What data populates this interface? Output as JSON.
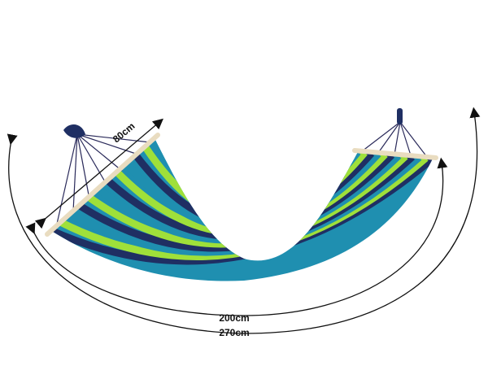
{
  "dimensions": {
    "width_label": "80cm",
    "bed_length_label": "200cm",
    "total_length_label": "270cm"
  },
  "colors": {
    "navy": "#1f2f63",
    "teal": "#1f8fb0",
    "lime": "#9fe03a",
    "wood": "#f1e7cf",
    "line": "#111111"
  }
}
